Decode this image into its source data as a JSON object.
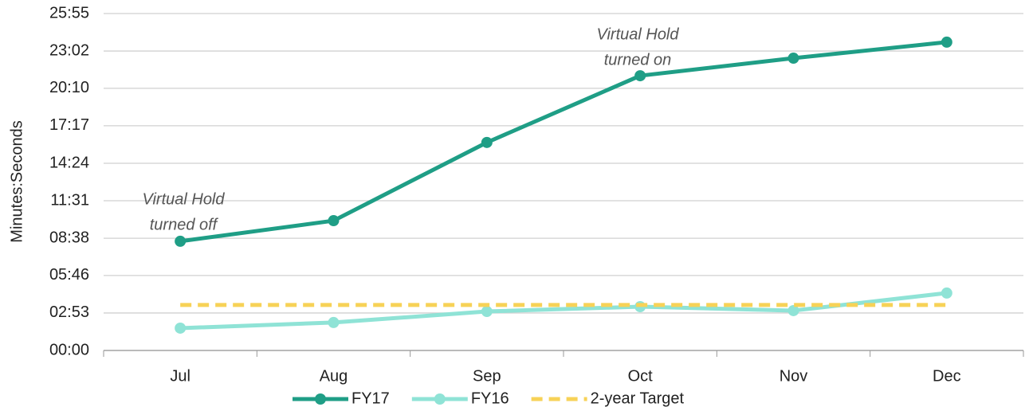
{
  "chart_data": {
    "type": "line",
    "y_label": "Minutes:Seconds",
    "categories": [
      "Jul",
      "Aug",
      "Sep",
      "Oct",
      "Nov",
      "Dec"
    ],
    "series": [
      {
        "name": "FY17",
        "color": "#1f9e86",
        "style": "solid",
        "markers": true,
        "values": [
          504,
          599,
          960,
          1268,
          1349,
          1423
        ]
      },
      {
        "name": "FY16",
        "color": "#8fe3d6",
        "style": "solid",
        "markers": true,
        "values": [
          103,
          129,
          180,
          202,
          184,
          265
        ]
      },
      {
        "name": "2-year Target",
        "color": "#f7d257",
        "style": "dashed",
        "markers": false,
        "values": [
          210,
          210,
          210,
          210,
          210,
          210
        ]
      }
    ],
    "ylim": [
      0,
      1555
    ],
    "yticks": [
      {
        "value": 0,
        "label": "00:00"
      },
      {
        "value": 173,
        "label": "02:53"
      },
      {
        "value": 346,
        "label": "05:46"
      },
      {
        "value": 518,
        "label": "08:38"
      },
      {
        "value": 691,
        "label": "11:31"
      },
      {
        "value": 864,
        "label": "14:24"
      },
      {
        "value": 1037,
        "label": "17:17"
      },
      {
        "value": 1210,
        "label": "20:10"
      },
      {
        "value": 1382,
        "label": "23:02"
      },
      {
        "value": 1555,
        "label": "25:55"
      }
    ],
    "grid": true,
    "legend": "bottom",
    "annotations": [
      {
        "lines": [
          "Virtual Hold",
          "turned off"
        ]
      },
      {
        "lines": [
          "Virtual Hold",
          "turned on"
        ]
      }
    ]
  }
}
